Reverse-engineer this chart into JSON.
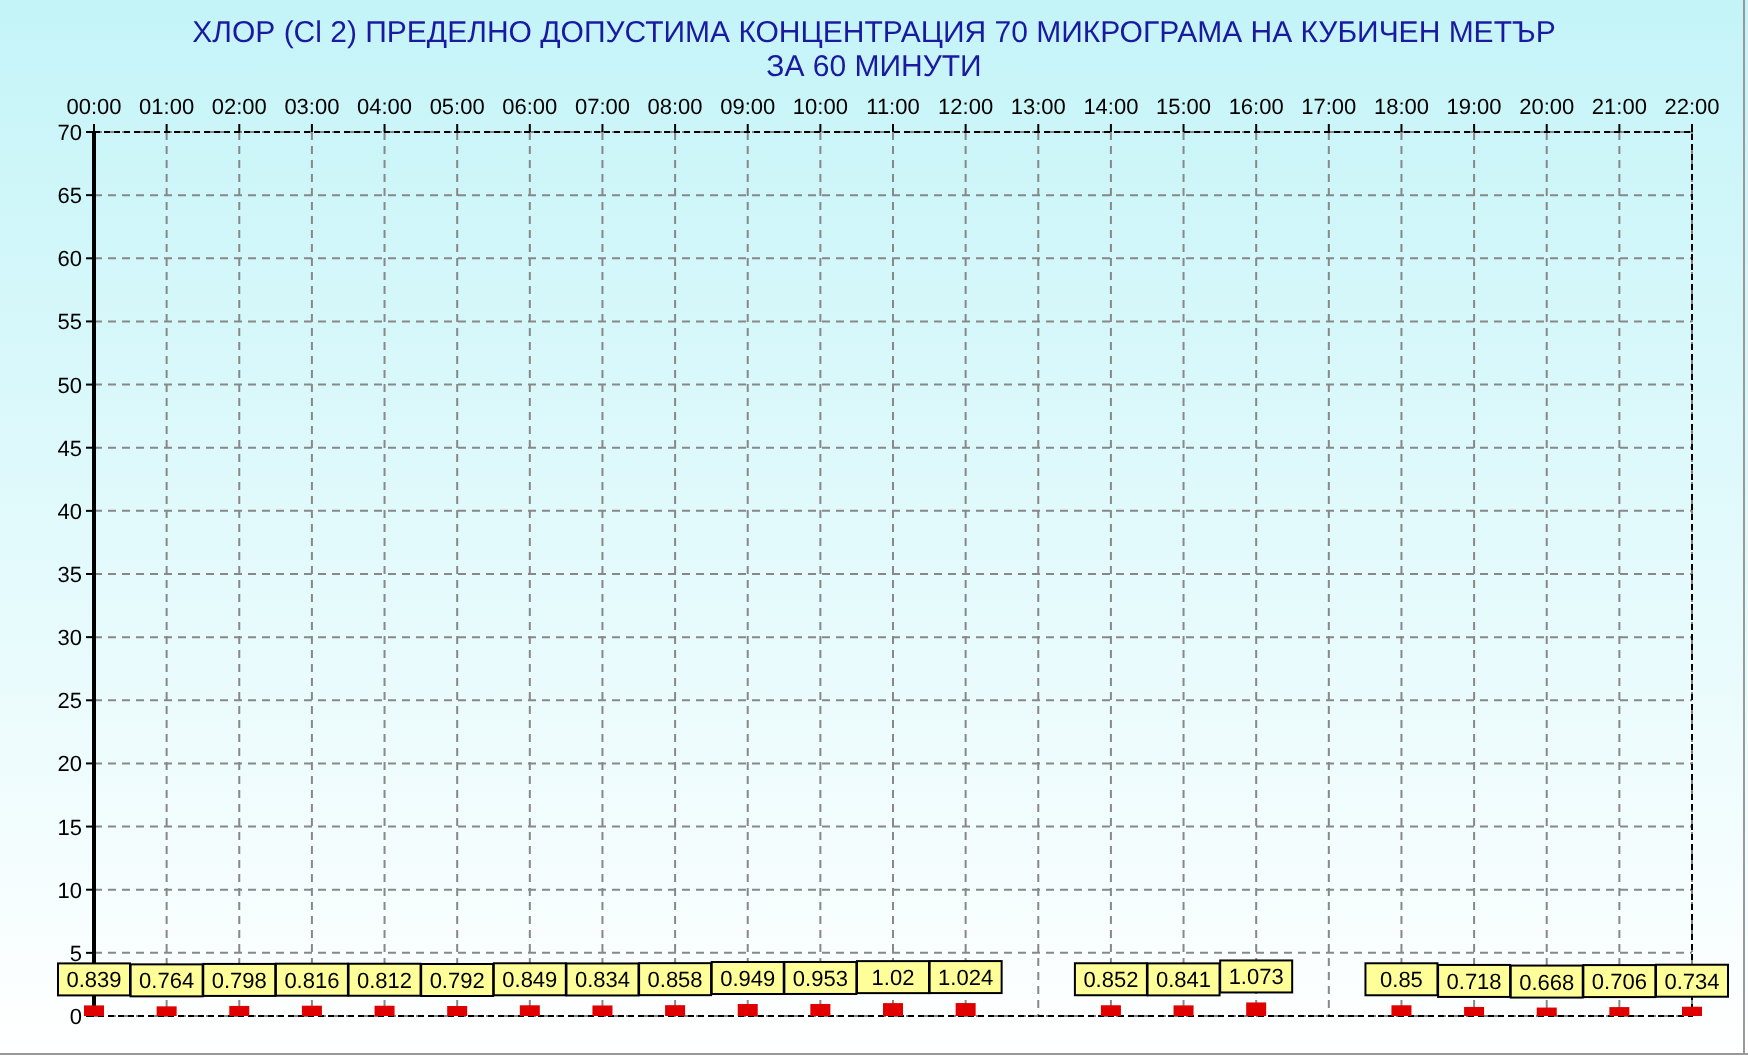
{
  "chart_data": {
    "type": "bar",
    "title": "ХЛОР  (Cl 2)    ПРЕДЕЛНО ДОПУСТИМА КОНЦЕНТРАЦИЯ 70 МИКРОГРАМА  НА КУБИЧЕН МЕТЪР",
    "subtitle": "ЗА 60 МИНУТИ",
    "categories": [
      "00:00",
      "01:00",
      "02:00",
      "03:00",
      "04:00",
      "05:00",
      "06:00",
      "07:00",
      "08:00",
      "09:00",
      "10:00",
      "11:00",
      "12:00",
      "13:00",
      "14:00",
      "15:00",
      "16:00",
      "17:00",
      "18:00",
      "19:00",
      "20:00",
      "21:00",
      "22:00"
    ],
    "values": [
      0.839,
      0.764,
      0.798,
      0.816,
      0.812,
      0.792,
      0.849,
      0.834,
      0.858,
      0.949,
      0.953,
      1.02,
      1.024,
      null,
      0.852,
      0.841,
      1.073,
      null,
      0.85,
      0.718,
      0.668,
      0.706,
      0.734
    ],
    "color": "#e00000",
    "data_labels": true,
    "ylim": [
      0,
      70
    ],
    "yticks": [
      0,
      5,
      10,
      15,
      20,
      25,
      30,
      35,
      40,
      45,
      50,
      55,
      60,
      65,
      70
    ],
    "grid": true
  }
}
